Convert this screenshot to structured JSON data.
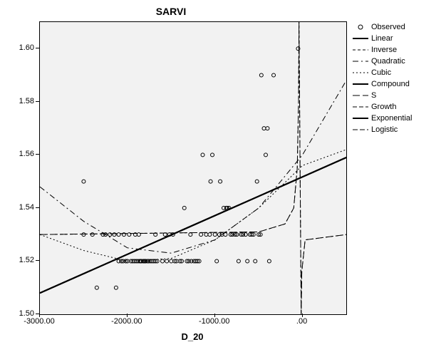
{
  "chart": {
    "type": "scatter-curvefit",
    "title": "SARVI",
    "title_fontsize": 14,
    "xlabel": "D_20",
    "label_fontsize": 13,
    "background_color": "#f2f2f2",
    "border_color": "#000000",
    "tick_fontsize": 11,
    "xlim": [
      -3000,
      500
    ],
    "ylim": [
      1.5,
      1.61
    ],
    "xticks": [
      -3000,
      -2000,
      -1000,
      0
    ],
    "xtick_labels": [
      "-3000.00",
      "-2000.00",
      "-1000.00",
      ".00"
    ],
    "yticks": [
      1.5,
      1.52,
      1.54,
      1.56,
      1.58,
      1.6
    ],
    "ytick_labels": [
      "1.50",
      "1.52",
      "1.54",
      "1.56",
      "1.58",
      "1.60"
    ],
    "observed": {
      "marker": "circle-open",
      "marker_color": "#000000",
      "marker_size": 5,
      "points": [
        [
          -2500,
          1.55
        ],
        [
          -2500,
          1.53
        ],
        [
          -2400,
          1.53
        ],
        [
          -2350,
          1.51
        ],
        [
          -2280,
          1.53
        ],
        [
          -2250,
          1.53
        ],
        [
          -2200,
          1.53
        ],
        [
          -2150,
          1.53
        ],
        [
          -2130,
          1.51
        ],
        [
          -2100,
          1.53
        ],
        [
          -2100,
          1.52
        ],
        [
          -2070,
          1.52
        ],
        [
          -2050,
          1.52
        ],
        [
          -2040,
          1.53
        ],
        [
          -2020,
          1.52
        ],
        [
          -2000,
          1.52
        ],
        [
          -1980,
          1.53
        ],
        [
          -1960,
          1.52
        ],
        [
          -1940,
          1.52
        ],
        [
          -1920,
          1.52
        ],
        [
          -1910,
          1.53
        ],
        [
          -1900,
          1.52
        ],
        [
          -1880,
          1.52
        ],
        [
          -1870,
          1.53
        ],
        [
          -1860,
          1.52
        ],
        [
          -1850,
          1.52
        ],
        [
          -1840,
          1.52
        ],
        [
          -1820,
          1.52
        ],
        [
          -1810,
          1.52
        ],
        [
          -1800,
          1.52
        ],
        [
          -1790,
          1.52
        ],
        [
          -1770,
          1.52
        ],
        [
          -1760,
          1.52
        ],
        [
          -1740,
          1.52
        ],
        [
          -1720,
          1.52
        ],
        [
          -1700,
          1.52
        ],
        [
          -1680,
          1.52
        ],
        [
          -1660,
          1.52
        ],
        [
          -1680,
          1.53
        ],
        [
          -1600,
          1.52
        ],
        [
          -1570,
          1.53
        ],
        [
          -1550,
          1.52
        ],
        [
          -1520,
          1.53
        ],
        [
          -1500,
          1.52
        ],
        [
          -1480,
          1.53
        ],
        [
          -1460,
          1.52
        ],
        [
          -1440,
          1.52
        ],
        [
          -1400,
          1.52
        ],
        [
          -1380,
          1.52
        ],
        [
          -1350,
          1.54
        ],
        [
          -1320,
          1.52
        ],
        [
          -1300,
          1.52
        ],
        [
          -1280,
          1.53
        ],
        [
          -1270,
          1.52
        ],
        [
          -1240,
          1.52
        ],
        [
          -1220,
          1.52
        ],
        [
          -1200,
          1.52
        ],
        [
          -1180,
          1.52
        ],
        [
          -1160,
          1.53
        ],
        [
          -1140,
          1.56
        ],
        [
          -1100,
          1.53
        ],
        [
          -1060,
          1.53
        ],
        [
          -1050,
          1.55
        ],
        [
          -1030,
          1.56
        ],
        [
          -1000,
          1.53
        ],
        [
          -980,
          1.52
        ],
        [
          -950,
          1.53
        ],
        [
          -940,
          1.55
        ],
        [
          -920,
          1.53
        ],
        [
          -900,
          1.54
        ],
        [
          -880,
          1.53
        ],
        [
          -870,
          1.54
        ],
        [
          -860,
          1.54
        ],
        [
          -840,
          1.54
        ],
        [
          -820,
          1.53
        ],
        [
          -800,
          1.53
        ],
        [
          -770,
          1.53
        ],
        [
          -750,
          1.53
        ],
        [
          -730,
          1.52
        ],
        [
          -700,
          1.53
        ],
        [
          -680,
          1.53
        ],
        [
          -650,
          1.53
        ],
        [
          -630,
          1.52
        ],
        [
          -600,
          1.53
        ],
        [
          -580,
          1.53
        ],
        [
          -560,
          1.53
        ],
        [
          -540,
          1.52
        ],
        [
          -500,
          1.53
        ],
        [
          -520,
          1.55
        ],
        [
          -480,
          1.53
        ],
        [
          -470,
          1.59
        ],
        [
          -440,
          1.57
        ],
        [
          -420,
          1.56
        ],
        [
          -400,
          1.57
        ],
        [
          -380,
          1.52
        ],
        [
          -330,
          1.59
        ],
        [
          -50,
          1.6
        ]
      ]
    },
    "curves": {
      "Linear": {
        "stroke": "#000000",
        "width": 2,
        "dash": "none",
        "points": [
          [
            -3000,
            1.508
          ],
          [
            500,
            1.559
          ]
        ]
      },
      "Inverse": {
        "stroke": "#000000",
        "width": 1,
        "dash": "4 3",
        "points": [
          [
            -3000,
            1.53
          ],
          [
            -500,
            1.531
          ],
          [
            -200,
            1.534
          ],
          [
            -100,
            1.54
          ],
          [
            -60,
            1.555
          ],
          [
            -45,
            1.58
          ],
          [
            -40,
            1.61
          ],
          [
            -15,
            1.5
          ],
          [
            -8,
            1.516
          ],
          [
            30,
            1.528
          ],
          [
            500,
            1.53
          ]
        ]
      },
      "Quadratic": {
        "stroke": "#000000",
        "width": 1,
        "dash": "8 4 2 4",
        "points": [
          [
            -3000,
            1.548
          ],
          [
            -2500,
            1.535
          ],
          [
            -2000,
            1.525
          ],
          [
            -1500,
            1.523
          ],
          [
            -1000,
            1.528
          ],
          [
            -500,
            1.54
          ],
          [
            0,
            1.56
          ],
          [
            500,
            1.588
          ]
        ]
      },
      "Cubic": {
        "stroke": "#000000",
        "width": 1,
        "dash": "2 3",
        "points": [
          [
            -3000,
            1.53
          ],
          [
            -2500,
            1.524
          ],
          [
            -2000,
            1.52
          ],
          [
            -1500,
            1.521
          ],
          [
            -1000,
            1.528
          ],
          [
            -500,
            1.54
          ],
          [
            0,
            1.556
          ],
          [
            500,
            1.562
          ]
        ]
      },
      "Compound": {
        "stroke": "#000000",
        "width": 2,
        "dash": "none",
        "points": [
          [
            -3000,
            1.508
          ],
          [
            500,
            1.559
          ]
        ]
      },
      "S": {
        "stroke": "#000000",
        "width": 1,
        "dash": "10 4",
        "points": [
          [
            -3000,
            1.53
          ],
          [
            -500,
            1.531
          ],
          [
            -200,
            1.534
          ],
          [
            -100,
            1.54
          ],
          [
            -60,
            1.555
          ],
          [
            -45,
            1.58
          ],
          [
            -40,
            1.61
          ],
          [
            -15,
            1.5
          ],
          [
            -8,
            1.516
          ],
          [
            30,
            1.528
          ],
          [
            500,
            1.53
          ]
        ]
      },
      "Growth": {
        "stroke": "#000000",
        "width": 1,
        "dash": "6 3",
        "points": [
          [
            -3000,
            1.508
          ],
          [
            500,
            1.559
          ]
        ]
      },
      "Exponential": {
        "stroke": "#000000",
        "width": 2,
        "dash": "none",
        "points": [
          [
            -3000,
            1.508
          ],
          [
            500,
            1.559
          ]
        ]
      },
      "Logistic": {
        "stroke": "#000000",
        "width": 1,
        "dash": "7 3",
        "points": [
          [
            -3000,
            1.508
          ],
          [
            500,
            1.559
          ]
        ]
      }
    },
    "legend": {
      "position": "right",
      "items": [
        {
          "label": "Observed",
          "type": "marker"
        },
        {
          "label": "Linear",
          "type": "line",
          "dash": "none",
          "width": 2
        },
        {
          "label": "Inverse",
          "type": "line",
          "dash": "4 3",
          "width": 1
        },
        {
          "label": "Quadratic",
          "type": "line",
          "dash": "8 4 2 4",
          "width": 1
        },
        {
          "label": "Cubic",
          "type": "line",
          "dash": "2 3",
          "width": 1
        },
        {
          "label": "Compound",
          "type": "line",
          "dash": "none",
          "width": 2
        },
        {
          "label": "S",
          "type": "line",
          "dash": "10 4",
          "width": 1
        },
        {
          "label": "Growth",
          "type": "line",
          "dash": "6 3",
          "width": 1
        },
        {
          "label": "Exponential",
          "type": "line",
          "dash": "none",
          "width": 2
        },
        {
          "label": "Logistic",
          "type": "line",
          "dash": "7 3",
          "width": 1
        }
      ]
    }
  }
}
